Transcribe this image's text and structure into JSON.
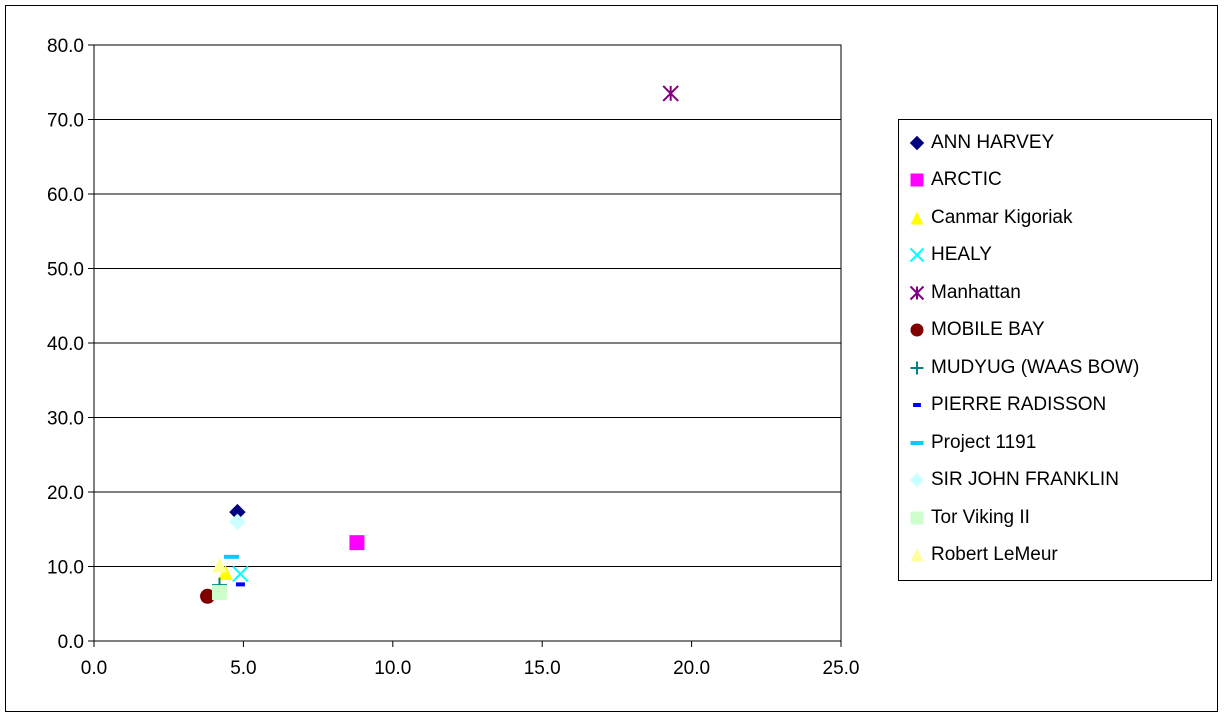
{
  "chart_data": {
    "type": "scatter",
    "xlim": [
      0,
      25
    ],
    "ylim": [
      0,
      80
    ],
    "x_ticks": [
      "0.0",
      "5.0",
      "10.0",
      "15.0",
      "20.0",
      "25.0"
    ],
    "y_ticks": [
      "0.0",
      "10.0",
      "20.0",
      "30.0",
      "40.0",
      "50.0",
      "60.0",
      "70.0",
      "80.0"
    ],
    "grid": "horizontal",
    "legend_position": "right",
    "series": [
      {
        "name": "ANN HARVEY",
        "marker": "diamond",
        "color": "#000080",
        "points": [
          [
            4.8,
            17.3
          ]
        ]
      },
      {
        "name": "ARCTIC",
        "marker": "square",
        "color": "#ff00ff",
        "points": [
          [
            8.8,
            13.2
          ]
        ]
      },
      {
        "name": "Canmar Kigoriak",
        "marker": "triangle",
        "color": "#ffff00",
        "points": [
          [
            4.4,
            9.2
          ]
        ]
      },
      {
        "name": "HEALY",
        "marker": "x",
        "color": "#00ffff",
        "points": [
          [
            4.9,
            9.0
          ]
        ]
      },
      {
        "name": "Manhattan",
        "marker": "star",
        "color": "#800080",
        "points": [
          [
            19.3,
            73.5
          ]
        ]
      },
      {
        "name": "MOBILE BAY",
        "marker": "circle",
        "color": "#800000",
        "points": [
          [
            3.8,
            6.0
          ]
        ]
      },
      {
        "name": "MUDYUG (WAAS BOW)",
        "marker": "plus",
        "color": "#008080",
        "points": [
          [
            4.2,
            7.5
          ]
        ]
      },
      {
        "name": "PIERRE RADISSON",
        "marker": "short-dash",
        "color": "#0000ff",
        "points": [
          [
            4.9,
            7.6
          ]
        ]
      },
      {
        "name": "Project 1191",
        "marker": "long-dash",
        "color": "#00ccff",
        "points": [
          [
            4.6,
            11.3
          ]
        ]
      },
      {
        "name": "SIR JOHN FRANKLIN",
        "marker": "diamond",
        "color": "#ccffff",
        "points": [
          [
            4.8,
            16.0
          ]
        ]
      },
      {
        "name": "Tor Viking II",
        "marker": "square",
        "color": "#ccffcc",
        "points": [
          [
            4.2,
            6.5
          ]
        ]
      },
      {
        "name": "Robert LeMeur",
        "marker": "triangle",
        "color": "#ffff99",
        "points": [
          [
            4.2,
            10.2
          ]
        ]
      }
    ]
  }
}
